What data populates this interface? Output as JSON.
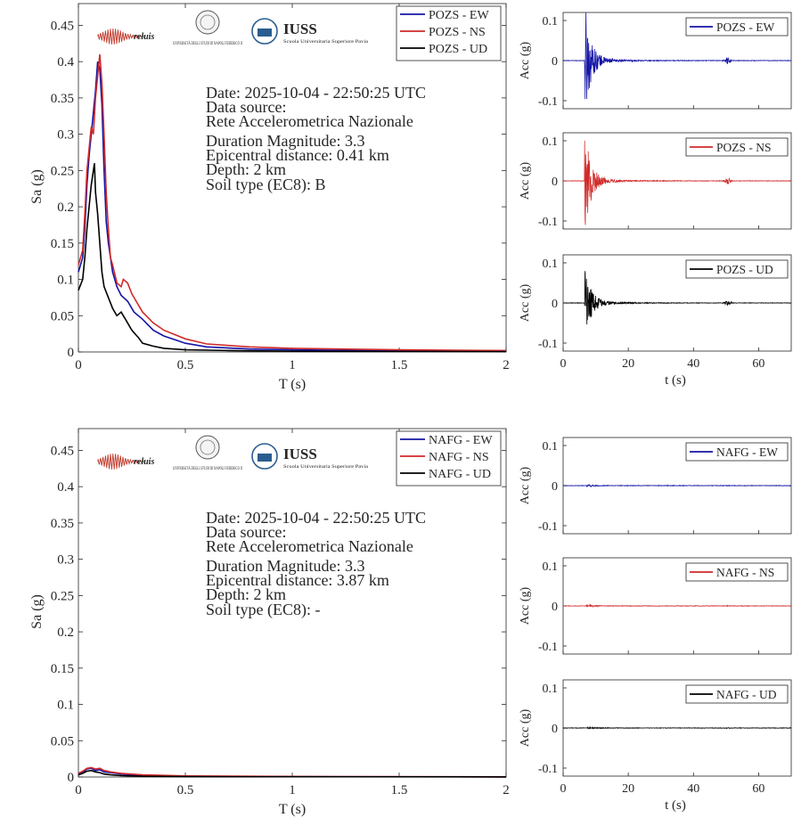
{
  "colors": {
    "ew": "#1414a6",
    "ns": "#d12a2a",
    "ud": "#000000",
    "axis": "#262626"
  },
  "logos": {
    "reluis": "reluis",
    "unina": "UNIVERSITÀ DEGLI STUDI DI NAPOLI FEDERICO II",
    "iuss": "IUSS",
    "iuss_sub": "Scuola Universitaria Superiore Pavia"
  },
  "chart_data": [
    {
      "type": "line",
      "station": "POZS",
      "xlabel": "T (s)",
      "ylabel": "Sa (g)",
      "xlim": [
        0,
        2
      ],
      "ylim": [
        0,
        0.48
      ],
      "xticks": [
        "0",
        "0.5",
        "1",
        "1.5",
        "2"
      ],
      "yticks": [
        "0",
        "0.05",
        "0.1",
        "0.15",
        "0.2",
        "0.25",
        "0.3",
        "0.35",
        "0.4",
        "0.45"
      ],
      "legend": "top-right",
      "info": {
        "date": "Date: 2025-10-04 - 22:50:25 UTC",
        "source_label": "Data source:",
        "source": "Rete Accelerometrica Nazionale",
        "magnitude": "Duration Magnitude: 3.3",
        "distance": "Epicentral distance: 0.41 km",
        "depth": "Depth: 2 km",
        "soil": "Soil type (EC8): B"
      },
      "series": [
        {
          "name": "POZS - EW",
          "color": "#1414a6",
          "points": [
            [
              0,
              0.11
            ],
            [
              0.02,
              0.13
            ],
            [
              0.03,
              0.17
            ],
            [
              0.04,
              0.23
            ],
            [
              0.05,
              0.27
            ],
            [
              0.06,
              0.3
            ],
            [
              0.07,
              0.33
            ],
            [
              0.08,
              0.36
            ],
            [
              0.09,
              0.4
            ],
            [
              0.1,
              0.39
            ],
            [
              0.11,
              0.34
            ],
            [
              0.12,
              0.25
            ],
            [
              0.13,
              0.18
            ],
            [
              0.14,
              0.15
            ],
            [
              0.16,
              0.11
            ],
            [
              0.18,
              0.09
            ],
            [
              0.2,
              0.078
            ],
            [
              0.23,
              0.07
            ],
            [
              0.26,
              0.055
            ],
            [
              0.3,
              0.045
            ],
            [
              0.35,
              0.03
            ],
            [
              0.4,
              0.022
            ],
            [
              0.5,
              0.012
            ],
            [
              0.6,
              0.007
            ],
            [
              0.8,
              0.004
            ],
            [
              1.0,
              0.003
            ],
            [
              1.5,
              0.0015
            ],
            [
              2.0,
              0.001
            ]
          ]
        },
        {
          "name": "POZS - NS",
          "color": "#d12a2a",
          "points": [
            [
              0,
              0.12
            ],
            [
              0.02,
              0.14
            ],
            [
              0.03,
              0.19
            ],
            [
              0.04,
              0.25
            ],
            [
              0.05,
              0.28
            ],
            [
              0.06,
              0.31
            ],
            [
              0.07,
              0.3
            ],
            [
              0.08,
              0.35
            ],
            [
              0.09,
              0.38
            ],
            [
              0.1,
              0.41
            ],
            [
              0.11,
              0.37
            ],
            [
              0.12,
              0.3
            ],
            [
              0.13,
              0.22
            ],
            [
              0.14,
              0.17
            ],
            [
              0.15,
              0.13
            ],
            [
              0.16,
              0.12
            ],
            [
              0.18,
              0.095
            ],
            [
              0.2,
              0.09
            ],
            [
              0.21,
              0.1
            ],
            [
              0.23,
              0.095
            ],
            [
              0.25,
              0.08
            ],
            [
              0.28,
              0.065
            ],
            [
              0.3,
              0.055
            ],
            [
              0.35,
              0.04
            ],
            [
              0.4,
              0.03
            ],
            [
              0.5,
              0.018
            ],
            [
              0.6,
              0.011
            ],
            [
              0.8,
              0.007
            ],
            [
              1.0,
              0.005
            ],
            [
              1.5,
              0.003
            ],
            [
              2.0,
              0.002
            ]
          ]
        },
        {
          "name": "POZS - UD",
          "color": "#000000",
          "points": [
            [
              0,
              0.085
            ],
            [
              0.02,
              0.1
            ],
            [
              0.03,
              0.13
            ],
            [
              0.04,
              0.17
            ],
            [
              0.05,
              0.2
            ],
            [
              0.06,
              0.23
            ],
            [
              0.07,
              0.25
            ],
            [
              0.075,
              0.26
            ],
            [
              0.08,
              0.22
            ],
            [
              0.09,
              0.19
            ],
            [
              0.1,
              0.15
            ],
            [
              0.11,
              0.11
            ],
            [
              0.12,
              0.09
            ],
            [
              0.14,
              0.075
            ],
            [
              0.16,
              0.06
            ],
            [
              0.18,
              0.05
            ],
            [
              0.2,
              0.055
            ],
            [
              0.22,
              0.045
            ],
            [
              0.25,
              0.03
            ],
            [
              0.28,
              0.02
            ],
            [
              0.3,
              0.012
            ],
            [
              0.35,
              0.008
            ],
            [
              0.4,
              0.005
            ],
            [
              0.5,
              0.003
            ],
            [
              0.7,
              0.002
            ],
            [
              1.0,
              0.001
            ],
            [
              2.0,
              0.0005
            ]
          ]
        }
      ],
      "time_histories": [
        {
          "name": "POZS - EW",
          "color": "#1414a6",
          "pga": 0.12,
          "ylim": [
            -0.12,
            0.12
          ],
          "xlim": [
            0,
            70
          ],
          "event_time": 6.9,
          "aftershock_time": 50.5,
          "aftershock_amp": 0.008
        },
        {
          "name": "POZS - NS",
          "color": "#d12a2a",
          "pga": 0.11,
          "ylim": [
            -0.12,
            0.12
          ],
          "xlim": [
            0,
            70
          ],
          "event_time": 6.9,
          "aftershock_time": 50.5,
          "aftershock_amp": 0.007
        },
        {
          "name": "POZS - UD",
          "color": "#000000",
          "pga": 0.085,
          "ylim": [
            -0.12,
            0.12
          ],
          "xlim": [
            0,
            70
          ],
          "event_time": 6.9,
          "aftershock_time": 50.5,
          "aftershock_amp": 0.006
        }
      ],
      "th_xlabel": "t (s)",
      "th_ylabel": "Acc (g)",
      "th_xticks": [
        "0",
        "20",
        "40",
        "60"
      ],
      "th_yticks": [
        "0.1",
        "0",
        "-0.1"
      ]
    },
    {
      "type": "line",
      "station": "NAFG",
      "xlabel": "T (s)",
      "ylabel": "Sa (g)",
      "xlim": [
        0,
        2
      ],
      "ylim": [
        0,
        0.48
      ],
      "xticks": [
        "0",
        "0.5",
        "1",
        "1.5",
        "2"
      ],
      "yticks": [
        "0",
        "0.05",
        "0.1",
        "0.15",
        "0.2",
        "0.25",
        "0.3",
        "0.35",
        "0.4",
        "0.45"
      ],
      "legend": "top-right",
      "info": {
        "date": "Date: 2025-10-04 - 22:50:25 UTC",
        "source_label": "Data source:",
        "source": "Rete Accelerometrica Nazionale",
        "magnitude": "Duration Magnitude: 3.3",
        "distance": "Epicentral distance: 3.87 km",
        "depth": "Depth: 2 km",
        "soil": "Soil type (EC8): -"
      },
      "series": [
        {
          "name": "NAFG - EW",
          "color": "#1414a6",
          "points": [
            [
              0,
              0.004
            ],
            [
              0.02,
              0.006
            ],
            [
              0.04,
              0.011
            ],
            [
              0.06,
              0.012
            ],
            [
              0.08,
              0.009
            ],
            [
              0.1,
              0.01
            ],
            [
              0.12,
              0.007
            ],
            [
              0.15,
              0.006
            ],
            [
              0.2,
              0.004
            ],
            [
              0.3,
              0.002
            ],
            [
              0.5,
              0.001
            ],
            [
              1.0,
              0.0005
            ],
            [
              2.0,
              0.0002
            ]
          ]
        },
        {
          "name": "NAFG - NS",
          "color": "#d12a2a",
          "points": [
            [
              0,
              0.005
            ],
            [
              0.02,
              0.008
            ],
            [
              0.04,
              0.012
            ],
            [
              0.06,
              0.013
            ],
            [
              0.08,
              0.011
            ],
            [
              0.1,
              0.012
            ],
            [
              0.12,
              0.009
            ],
            [
              0.15,
              0.007
            ],
            [
              0.2,
              0.005
            ],
            [
              0.3,
              0.003
            ],
            [
              0.5,
              0.0015
            ],
            [
              1.0,
              0.0007
            ],
            [
              2.0,
              0.0003
            ]
          ]
        },
        {
          "name": "NAFG - UD",
          "color": "#000000",
          "points": [
            [
              0,
              0.003
            ],
            [
              0.02,
              0.005
            ],
            [
              0.04,
              0.008
            ],
            [
              0.06,
              0.009
            ],
            [
              0.08,
              0.007
            ],
            [
              0.1,
              0.006
            ],
            [
              0.12,
              0.004
            ],
            [
              0.15,
              0.003
            ],
            [
              0.2,
              0.002
            ],
            [
              0.3,
              0.001
            ],
            [
              0.5,
              0.0005
            ],
            [
              2.0,
              0.0001
            ]
          ]
        }
      ],
      "time_histories": [
        {
          "name": "NAFG - EW",
          "color": "#1414a6",
          "pga": 0.003,
          "ylim": [
            -0.12,
            0.12
          ],
          "xlim": [
            0,
            70
          ],
          "event_time": 7.5,
          "aftershock_time": 50.5,
          "aftershock_amp": 0.0005
        },
        {
          "name": "NAFG - NS",
          "color": "#d12a2a",
          "pga": 0.003,
          "ylim": [
            -0.12,
            0.12
          ],
          "xlim": [
            0,
            70
          ],
          "event_time": 7.5,
          "aftershock_time": 50.5,
          "aftershock_amp": 0.0005
        },
        {
          "name": "NAFG - UD",
          "color": "#000000",
          "pga": 0.002,
          "ylim": [
            -0.12,
            0.12
          ],
          "xlim": [
            0,
            70
          ],
          "event_time": 7.5,
          "aftershock_time": 50.5,
          "aftershock_amp": 0.0004
        }
      ],
      "th_xlabel": "t (s)",
      "th_ylabel": "Acc (g)",
      "th_xticks": [
        "0",
        "20",
        "40",
        "60"
      ],
      "th_yticks": [
        "0.1",
        "0",
        "-0.1"
      ]
    }
  ]
}
